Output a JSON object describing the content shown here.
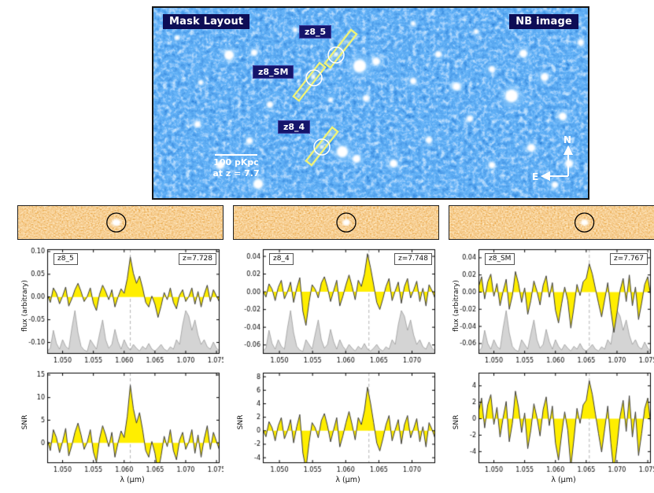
{
  "nb_panel": {
    "title_left": "Mask Layout",
    "title_right": "NB image",
    "targets": [
      {
        "label": "z8_5"
      },
      {
        "label": "z8_SM"
      },
      {
        "label": "z8_4"
      }
    ],
    "scale_bar": {
      "line1": "100 pKpc",
      "line2": "at z = 7.7"
    },
    "compass": {
      "north": "N",
      "east": "E"
    }
  },
  "sky_spectrum": [
    0.06,
    0.12,
    0.5,
    0.22,
    0.1,
    0.3,
    0.16,
    0.1,
    0.55,
    0.92,
    0.45,
    0.16,
    0.08,
    0.05,
    0.3,
    0.2,
    0.1,
    0.42,
    0.72,
    0.3,
    0.12,
    0.2,
    0.52,
    0.26,
    0.1,
    0.3,
    0.16,
    0.08,
    0.2,
    0.12,
    0.06,
    0.16,
    0.1,
    0.22,
    0.1,
    0.06,
    0.12,
    0.2,
    0.1,
    0.06,
    0.15,
    0.1,
    0.3,
    0.2,
    0.62,
    0.92,
    0.8,
    0.5,
    0.72,
    0.4,
    0.2,
    0.3,
    0.15,
    0.1,
    0.25,
    0.12,
    0.06
  ],
  "chart_data": [
    {
      "type": "line",
      "object_label": "z8_5",
      "redshift_label": "z=7.728",
      "xlabel": "λ (μm)",
      "strip": {
        "circle_frac": 0.48
      },
      "flux": {
        "ylabel": "flux (arbitrary)",
        "xlim": [
          1.0475,
          1.0755
        ],
        "ylim": [
          -0.125,
          0.105
        ],
        "xticks": [
          1.05,
          1.055,
          1.06,
          1.065,
          1.07,
          1.075
        ],
        "xtick_labels": [
          "1.050",
          "1.055",
          "1.060",
          "1.065",
          "1.070",
          "1.075"
        ],
        "yticks": [
          0.1,
          0.05,
          0.0,
          -0.05,
          -0.1
        ],
        "ytick_labels": [
          "0.10",
          "0.05",
          "0.00",
          "-0.05",
          "-0.10"
        ],
        "line_x": 1.061,
        "values": [
          0.005,
          -0.012,
          0.02,
          0.008,
          -0.015,
          0.002,
          0.022,
          -0.02,
          -0.004,
          0.016,
          0.03,
          0.012,
          -0.01,
          0.001,
          0.02,
          -0.014,
          -0.03,
          0.006,
          0.026,
          0.012,
          -0.006,
          0.016,
          -0.022,
          0.0,
          0.018,
          0.008,
          0.04,
          0.088,
          0.052,
          0.03,
          0.046,
          0.02,
          -0.012,
          -0.022,
          0.002,
          -0.016,
          -0.045,
          -0.02,
          0.01,
          -0.006,
          0.02,
          -0.012,
          -0.026,
          0.004,
          0.016,
          -0.01,
          0.001,
          0.02,
          -0.016,
          0.012,
          -0.022,
          0.006,
          0.026,
          -0.01,
          0.016,
          0.002,
          -0.012
        ]
      },
      "snr": {
        "ylabel": "SNR",
        "ylim": [
          -4.5,
          15.5
        ],
        "yticks": [
          0,
          5,
          10,
          15
        ],
        "ytick_labels": [
          "0",
          "5",
          "10",
          "15"
        ],
        "scale": 145
      }
    },
    {
      "type": "line",
      "object_label": "z8_4",
      "redshift_label": "z=7.748",
      "xlabel": "λ (μm)",
      "strip": {
        "circle_frac": 0.55
      },
      "flux": {
        "ylabel": "",
        "xlim": [
          1.0475,
          1.0735
        ],
        "ylim": [
          -0.07,
          0.048
        ],
        "xticks": [
          1.05,
          1.055,
          1.06,
          1.065,
          1.07
        ],
        "xtick_labels": [
          "1.050",
          "1.055",
          "1.060",
          "1.065",
          "1.070"
        ],
        "yticks": [
          0.04,
          0.02,
          0.0,
          -0.02,
          -0.04,
          -0.06
        ],
        "ytick_labels": [
          "0.04",
          "0.02",
          "0.00",
          "-0.02",
          "-0.04",
          "-0.06"
        ],
        "line_x": 1.0635,
        "values": [
          0.001,
          -0.006,
          0.009,
          0.003,
          -0.01,
          0.005,
          0.013,
          -0.008,
          0.0,
          0.011,
          -0.012,
          0.004,
          0.016,
          -0.022,
          -0.038,
          -0.012,
          0.008,
          0.003,
          -0.007,
          0.01,
          0.017,
          0.005,
          -0.011,
          0.001,
          0.013,
          -0.016,
          -0.005,
          0.008,
          0.019,
          0.006,
          -0.009,
          0.013,
          0.006,
          0.02,
          0.043,
          0.027,
          0.008,
          -0.012,
          -0.02,
          -0.008,
          0.006,
          0.015,
          -0.01,
          0.001,
          0.011,
          -0.013,
          0.006,
          0.015,
          -0.007,
          0.002,
          0.012,
          -0.011,
          0.004,
          -0.016,
          0.008,
          0.001,
          -0.008
        ]
      },
      "snr": {
        "ylabel": "SNR",
        "ylim": [
          -4.8,
          8.6
        ],
        "yticks": [
          -4,
          -2,
          0,
          2,
          4,
          6,
          8
        ],
        "ytick_labels": [
          "-4",
          "-2",
          "0",
          "2",
          "4",
          "6",
          "8"
        ],
        "scale": 150
      }
    },
    {
      "type": "line",
      "object_label": "z8_SM",
      "redshift_label": "z=7.767",
      "xlabel": "λ (μm)",
      "strip": {
        "circle_frac": 0.66
      },
      "flux": {
        "ylabel": "flux (arbitrary)",
        "xlim": [
          1.0475,
          1.0755
        ],
        "ylim": [
          -0.072,
          0.05
        ],
        "xticks": [
          1.05,
          1.055,
          1.06,
          1.065,
          1.07,
          1.075
        ],
        "xtick_labels": [
          "1.050",
          "1.055",
          "1.060",
          "1.065",
          "1.070",
          "1.075"
        ],
        "yticks": [
          0.04,
          0.02,
          0.0,
          -0.02,
          -0.04,
          -0.06
        ],
        "ytick_labels": [
          "0.04",
          "0.02",
          "0.00",
          "-0.02",
          "-0.04",
          "-0.06"
        ],
        "line_x": 1.0655,
        "values": [
          0.006,
          0.018,
          -0.008,
          0.012,
          0.021,
          -0.005,
          0.01,
          -0.016,
          0.001,
          0.015,
          -0.02,
          -0.004,
          0.024,
          0.01,
          -0.012,
          0.005,
          -0.026,
          -0.01,
          0.013,
          0.001,
          -0.015,
          0.008,
          0.019,
          -0.006,
          0.011,
          -0.021,
          -0.036,
          -0.014,
          0.006,
          -0.01,
          -0.042,
          -0.018,
          0.009,
          -0.004,
          0.012,
          0.016,
          0.033,
          0.021,
          0.004,
          -0.013,
          -0.029,
          -0.009,
          0.011,
          -0.021,
          -0.047,
          -0.024,
          0.002,
          0.016,
          -0.011,
          0.02,
          -0.016,
          0.006,
          -0.032,
          -0.013,
          0.009,
          0.018,
          -0.006
        ]
      },
      "snr": {
        "ylabel": "SNR",
        "ylim": [
          -5.4,
          5.6
        ],
        "yticks": [
          -4,
          -2,
          0,
          2,
          4
        ],
        "ytick_labels": [
          "-4",
          "-2",
          "0",
          "2",
          "4"
        ],
        "scale": 140
      }
    }
  ]
}
